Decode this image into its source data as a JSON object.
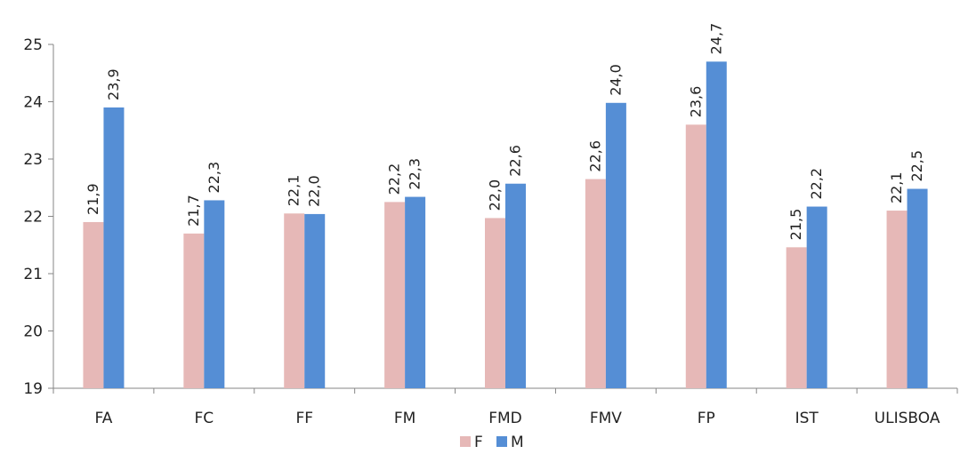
{
  "chart_data": {
    "type": "bar",
    "title": "",
    "xlabel": "",
    "ylabel": "",
    "ylim": [
      19,
      25
    ],
    "yticks": [
      19,
      20,
      21,
      22,
      23,
      24,
      25
    ],
    "categories": [
      "FA",
      "FC",
      "FF",
      "FM",
      "FMD",
      "FMV",
      "FP",
      "IST",
      "ULISBOA"
    ],
    "series": [
      {
        "name": "F",
        "color": "#e6b8b7",
        "values": [
          21.9,
          21.7,
          22.05,
          22.25,
          21.97,
          22.65,
          23.6,
          21.46,
          22.1
        ],
        "labels": [
          "21,9",
          "21,7",
          "22,1",
          "22,2",
          "22,0",
          "22,6",
          "23,6",
          "21,5",
          "22,1"
        ]
      },
      {
        "name": "M",
        "color": "#558ed5",
        "values": [
          23.9,
          22.28,
          22.04,
          22.34,
          22.57,
          23.98,
          24.7,
          22.17,
          22.48
        ],
        "labels": [
          "23,9",
          "22,3",
          "22,0",
          "22,3",
          "22,6",
          "24,0",
          "24,7",
          "22,2",
          "22,5"
        ]
      }
    ],
    "legend": {
      "position": "bottom",
      "entries": [
        "F",
        "M"
      ]
    },
    "grid": false
  }
}
